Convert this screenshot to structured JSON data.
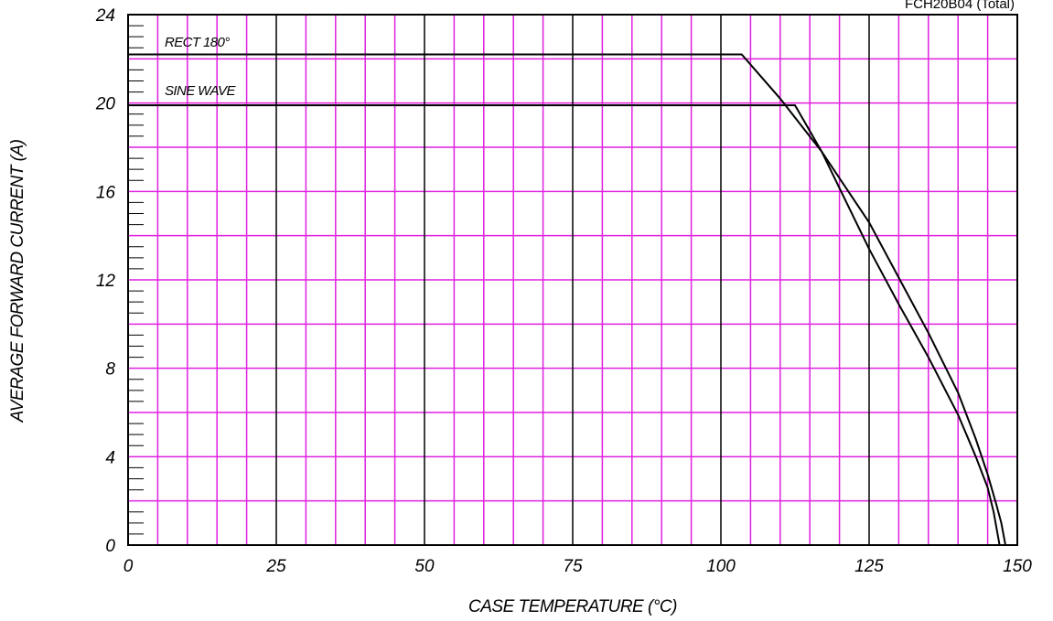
{
  "chart_data": {
    "type": "line",
    "title": "FCH20B04 (Total)",
    "xlabel": "CASE TEMPERATURE (°C)",
    "ylabel": "AVERAGE FORWARD CURRENT (A)",
    "xlim": [
      0,
      150
    ],
    "ylim": [
      0,
      24
    ],
    "x_ticks": [
      "0",
      "25",
      "50",
      "75",
      "100",
      "125",
      "150"
    ],
    "y_ticks": [
      "0",
      "4",
      "8",
      "12",
      "16",
      "20",
      "24"
    ],
    "grid": true,
    "colors": {
      "minor_grid": "#e020e0",
      "major_grid": "#000000",
      "series": "#000000"
    },
    "series": [
      {
        "name": "RECT 180°",
        "points": [
          [
            0,
            22.2
          ],
          [
            103.5,
            22.2
          ],
          [
            110,
            20.2
          ],
          [
            117,
            17.8
          ],
          [
            125,
            14.6
          ],
          [
            130,
            12.1
          ],
          [
            135,
            9.6
          ],
          [
            140,
            6.9
          ],
          [
            143,
            4.8
          ],
          [
            145,
            3.2
          ],
          [
            146.5,
            1.8
          ],
          [
            147.3,
            1.0
          ],
          [
            148,
            0
          ]
        ]
      },
      {
        "name": "SINE WAVE",
        "points": [
          [
            0,
            19.9
          ],
          [
            112.5,
            19.9
          ],
          [
            117,
            17.8
          ],
          [
            125,
            13.4
          ],
          [
            130,
            10.9
          ],
          [
            135,
            8.5
          ],
          [
            140,
            5.9
          ],
          [
            143,
            4.0
          ],
          [
            145,
            2.6
          ],
          [
            146,
            1.5
          ],
          [
            146.6,
            0.6
          ],
          [
            147,
            0
          ]
        ]
      }
    ]
  }
}
